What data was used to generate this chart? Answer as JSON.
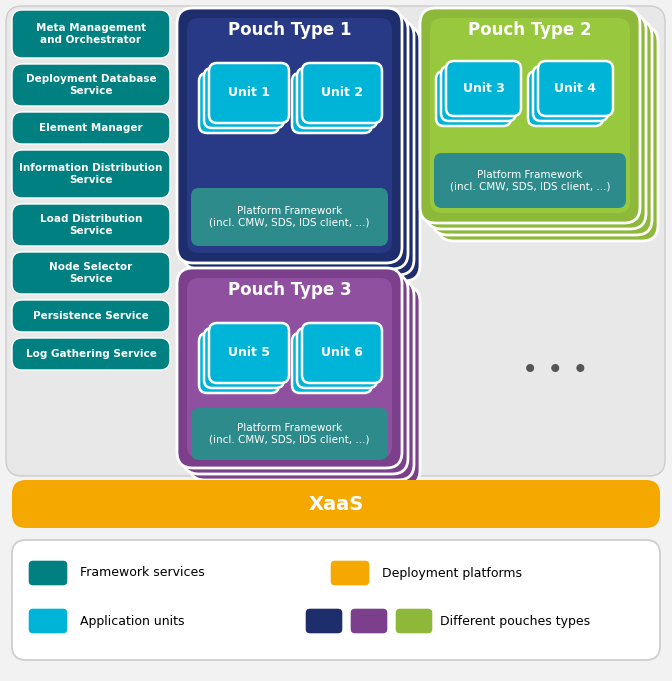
{
  "fig_width": 6.72,
  "fig_height": 6.81,
  "bg_color": "#f2f2f2",
  "teal_color": "#008080",
  "cyan_color": "#00b4d8",
  "orange_color": "#f5a800",
  "navy_color": "#1e2d6b",
  "purple_color": "#7b3f8c",
  "green_color": "#8db83a",
  "white_color": "#ffffff",
  "services": [
    "Meta Management\nand Orchestrator",
    "Deployment Database\nService",
    "Element Manager",
    "Information Distribution\nService",
    "Load Distribution\nService",
    "Node Selector\nService",
    "Persistence Service",
    "Log Gathering Service"
  ],
  "pouch1_title": "Pouch Type 1",
  "pouch2_title": "Pouch Type 2",
  "pouch3_title": "Pouch Type 3",
  "unit1": "Unit 1",
  "unit2": "Unit 2",
  "unit3": "Unit 3",
  "unit4": "Unit 4",
  "unit5": "Unit 5",
  "unit6": "Unit 6",
  "platform_text": "Platform Framework\n(incl. CMW, SDS, IDS client, ...)",
  "xaas_text": "XaaS",
  "dots": "• • •"
}
